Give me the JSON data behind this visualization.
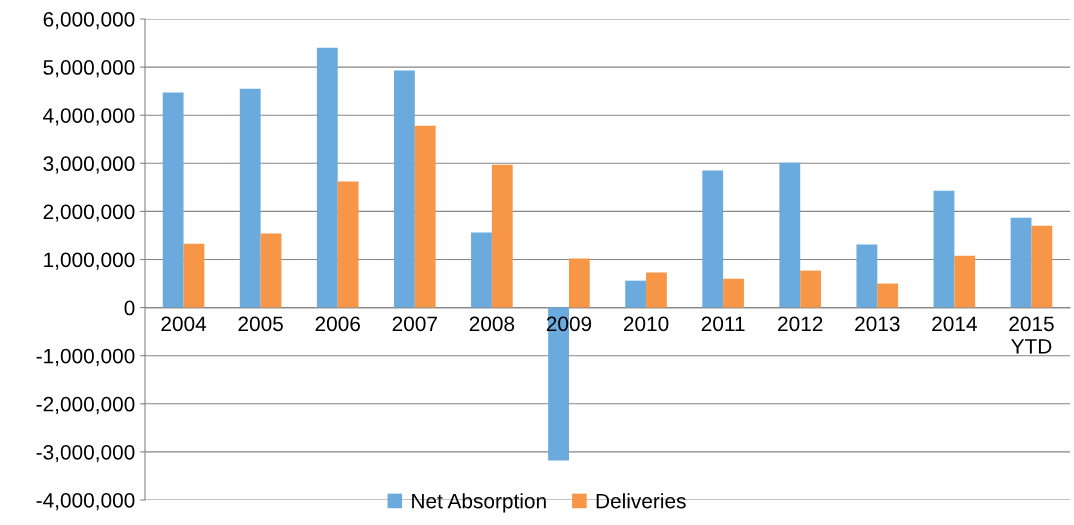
{
  "chart_data": {
    "type": "bar",
    "categories": [
      "2004",
      "2005",
      "2006",
      "2007",
      "2008",
      "2009",
      "2010",
      "2011",
      "2012",
      "2013",
      "2014",
      "2015\nYTD"
    ],
    "series": [
      {
        "name": "Net Absorption",
        "color": "#6aaadc",
        "values": [
          4470000,
          4550000,
          5400000,
          4930000,
          1560000,
          -3180000,
          560000,
          2850000,
          3010000,
          1310000,
          2430000,
          1870000
        ]
      },
      {
        "name": "Deliveries",
        "color": "#f79646",
        "values": [
          1330000,
          1540000,
          2620000,
          3780000,
          2970000,
          1020000,
          730000,
          600000,
          770000,
          500000,
          1080000,
          1700000
        ]
      }
    ],
    "ylim": [
      -4000000,
      6000000
    ],
    "yticks": [
      {
        "value": -4000000,
        "label": "-4,000,000"
      },
      {
        "value": -3000000,
        "label": "-3,000,000"
      },
      {
        "value": -2000000,
        "label": "-2,000,000"
      },
      {
        "value": -1000000,
        "label": "-1,000,000"
      },
      0,
      {
        "value": 1000000,
        "label": "1,000,000"
      },
      {
        "value": 2000000,
        "label": "2,000,000"
      },
      {
        "value": 3000000,
        "label": "3,000,000"
      },
      {
        "value": 4000000,
        "label": "4,000,000"
      },
      {
        "value": 5000000,
        "label": "5,000,000"
      },
      {
        "value": 6000000,
        "label": "6,000,000"
      }
    ],
    "grid": "y",
    "legend": "bottom"
  }
}
